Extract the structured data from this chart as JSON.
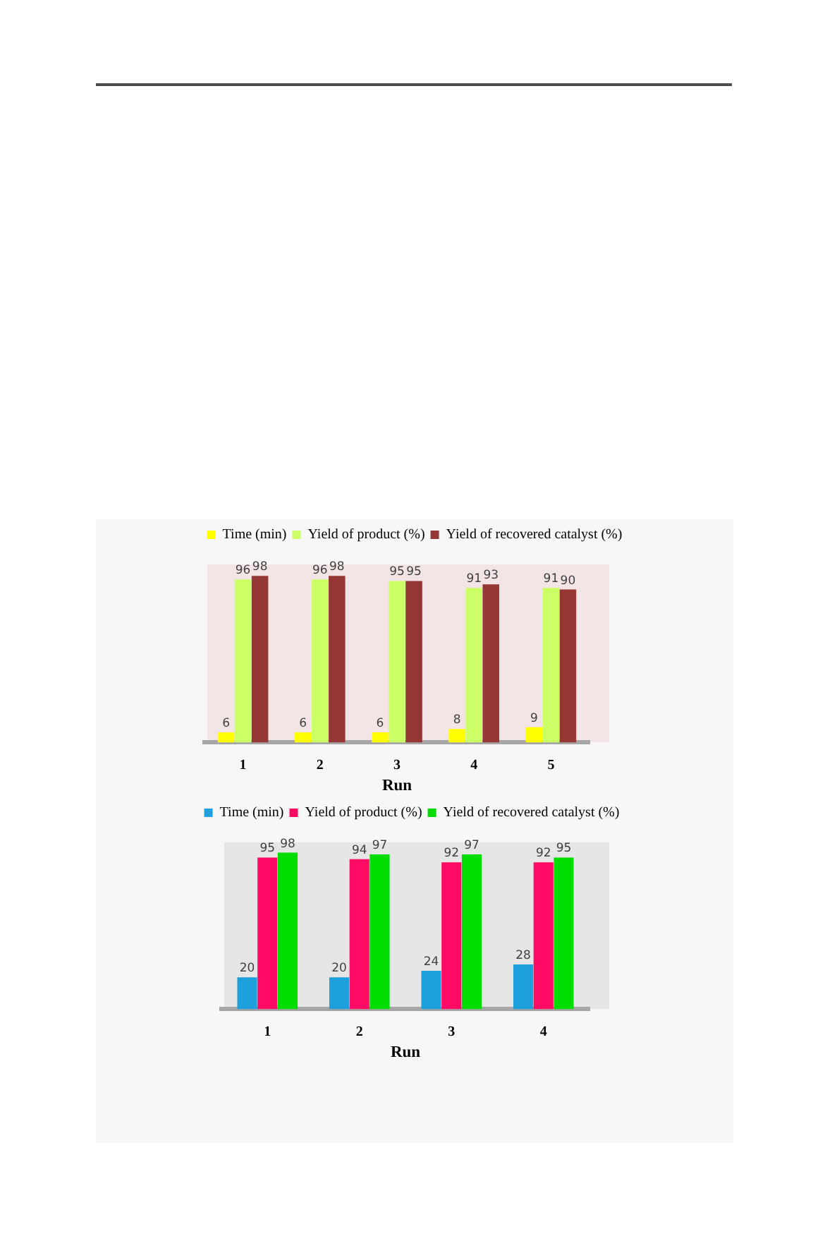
{
  "chart_data": [
    {
      "type": "bar",
      "categories": [
        "1",
        "2",
        "3",
        "4",
        "5"
      ],
      "xlabel": "Run",
      "series": [
        {
          "name": "Time (min)",
          "color": "#ffff00",
          "values": [
            6,
            6,
            6,
            8,
            9
          ]
        },
        {
          "name": "Yield of product (%)",
          "color": "#ccff66",
          "values": [
            96,
            96,
            95,
            91,
            91
          ]
        },
        {
          "name": "Yield of recovered catalyst (%)",
          "color": "#953735",
          "values": [
            98,
            98,
            95,
            93,
            90
          ]
        }
      ],
      "data_labels": true,
      "legend": "top",
      "grid": false,
      "tick_labels": "x"
    },
    {
      "type": "bar",
      "categories": [
        "1",
        "2",
        "3",
        "4"
      ],
      "xlabel": "Run",
      "series": [
        {
          "name": "Time (min)",
          "color": "#1ea0dc",
          "values": [
            20,
            20,
            24,
            28
          ]
        },
        {
          "name": "Yield of product (%)",
          "color": "#ff0a64",
          "values": [
            95,
            94,
            92,
            92
          ]
        },
        {
          "name": "Yield of recovered catalyst (%)",
          "color": "#00dd00",
          "values": [
            98,
            97,
            97,
            95
          ]
        }
      ],
      "data_labels": true,
      "legend": "top",
      "grid": false,
      "tick_labels": "x"
    }
  ]
}
